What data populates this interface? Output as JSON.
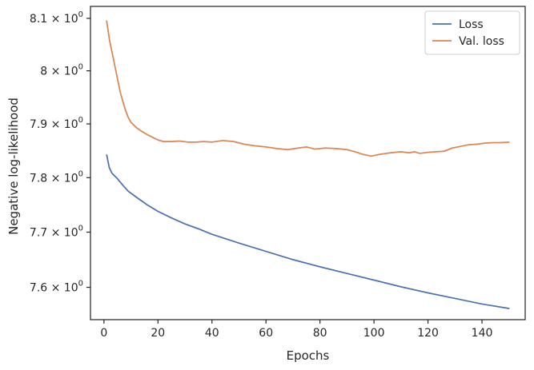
{
  "chart_data": {
    "type": "line",
    "title": "",
    "xlabel": "Epochs",
    "ylabel": "Negative log-likelihood",
    "xlim": [
      -5,
      156
    ],
    "ylim": [
      7.542,
      8.123
    ],
    "yscale": "log",
    "grid": false,
    "legend_position": "top-right",
    "x_ticks": [
      0,
      20,
      40,
      60,
      80,
      100,
      120,
      140
    ],
    "x_tick_labels": [
      "0",
      "20",
      "40",
      "60",
      "80",
      "100",
      "120",
      "140"
    ],
    "y_ticks": [
      7.6,
      7.7,
      7.8,
      7.9,
      8.0,
      8.1
    ],
    "y_tick_labels": [
      "7.6",
      "7.7",
      "7.8",
      "7.9",
      "8",
      "8.1"
    ],
    "y_tick_suffix": "× 10",
    "y_tick_exponent": "0",
    "series": [
      {
        "name": "Loss",
        "color": "#4c72b0",
        "points": [
          [
            1,
            7.842
          ],
          [
            2,
            7.818
          ],
          [
            3,
            7.808
          ],
          [
            5,
            7.798
          ],
          [
            7,
            7.786
          ],
          [
            9,
            7.775
          ],
          [
            12,
            7.764
          ],
          [
            16,
            7.75
          ],
          [
            20,
            7.738
          ],
          [
            25,
            7.726
          ],
          [
            30,
            7.715
          ],
          [
            35,
            7.706
          ],
          [
            40,
            7.696
          ],
          [
            50,
            7.68
          ],
          [
            60,
            7.665
          ],
          [
            70,
            7.65
          ],
          [
            80,
            7.637
          ],
          [
            90,
            7.625
          ],
          [
            100,
            7.613
          ],
          [
            110,
            7.601
          ],
          [
            120,
            7.59
          ],
          [
            130,
            7.58
          ],
          [
            140,
            7.57
          ],
          [
            150,
            7.562
          ]
        ]
      },
      {
        "name": "Val. loss",
        "color": "#dd8452",
        "points": [
          [
            1,
            8.095
          ],
          [
            2,
            8.06
          ],
          [
            3,
            8.035
          ],
          [
            4,
            8.01
          ],
          [
            5,
            7.985
          ],
          [
            6,
            7.96
          ],
          [
            7,
            7.942
          ],
          [
            8,
            7.925
          ],
          [
            9,
            7.912
          ],
          [
            10,
            7.903
          ],
          [
            12,
            7.893
          ],
          [
            14,
            7.886
          ],
          [
            16,
            7.88
          ],
          [
            18,
            7.875
          ],
          [
            20,
            7.87
          ],
          [
            22,
            7.867
          ],
          [
            25,
            7.867
          ],
          [
            28,
            7.868
          ],
          [
            31,
            7.866
          ],
          [
            34,
            7.866
          ],
          [
            37,
            7.867
          ],
          [
            40,
            7.866
          ],
          [
            44,
            7.869
          ],
          [
            48,
            7.867
          ],
          [
            52,
            7.862
          ],
          [
            56,
            7.859
          ],
          [
            60,
            7.857
          ],
          [
            64,
            7.854
          ],
          [
            68,
            7.852
          ],
          [
            72,
            7.855
          ],
          [
            75,
            7.857
          ],
          [
            78,
            7.853
          ],
          [
            82,
            7.855
          ],
          [
            86,
            7.854
          ],
          [
            90,
            7.852
          ],
          [
            93,
            7.848
          ],
          [
            96,
            7.843
          ],
          [
            99,
            7.84
          ],
          [
            102,
            7.843
          ],
          [
            106,
            7.846
          ],
          [
            110,
            7.848
          ],
          [
            113,
            7.846
          ],
          [
            115,
            7.848
          ],
          [
            117,
            7.845
          ],
          [
            120,
            7.847
          ],
          [
            123,
            7.848
          ],
          [
            126,
            7.849
          ],
          [
            129,
            7.855
          ],
          [
            132,
            7.858
          ],
          [
            135,
            7.861
          ],
          [
            138,
            7.862
          ],
          [
            141,
            7.864
          ],
          [
            144,
            7.865
          ],
          [
            147,
            7.865
          ],
          [
            150,
            7.866
          ]
        ]
      }
    ]
  }
}
